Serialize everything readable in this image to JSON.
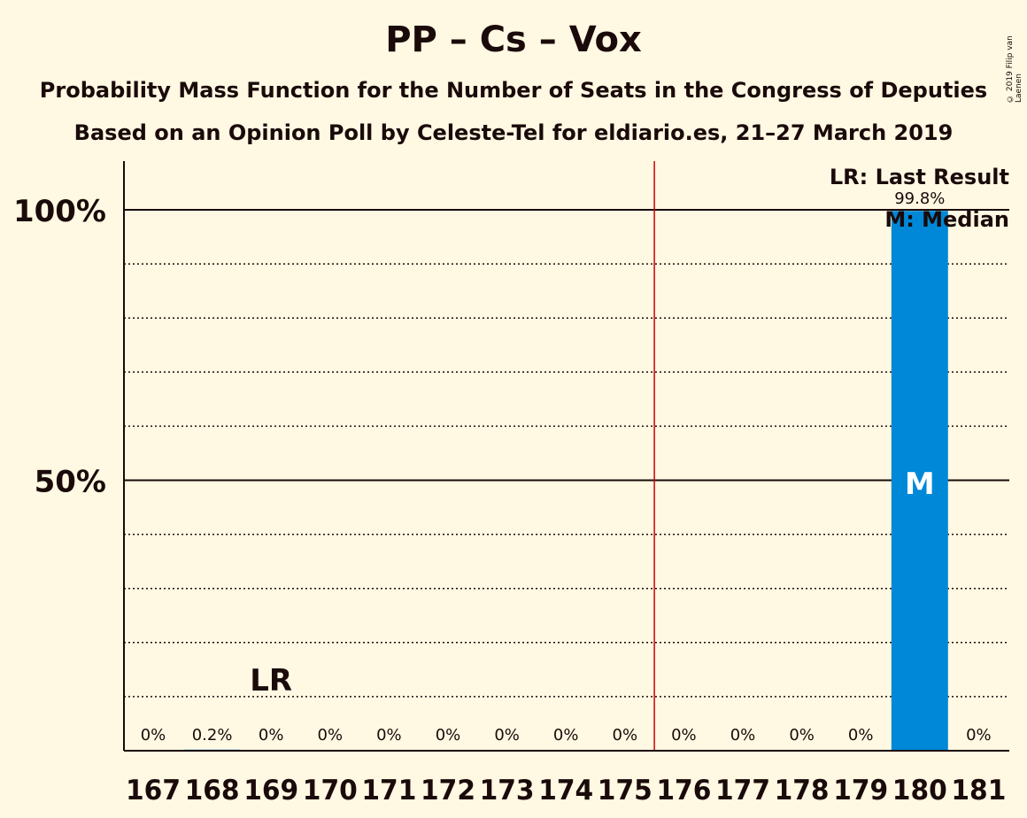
{
  "header": {
    "title": "PP – Cs – Vox",
    "subtitle": "Probability Mass Function for the Number of Seats in the Congress of Deputies",
    "subtitle2": "Based on an Opinion Poll by Celeste-Tel for eldiario.es, 21–27 March 2019"
  },
  "copyright": "© 2019 Filip van Laenen",
  "legend": {
    "last_result": "LR: Last Result",
    "median": "M: Median"
  },
  "chart_data": {
    "type": "bar",
    "categories": [
      "167",
      "168",
      "169",
      "170",
      "171",
      "172",
      "173",
      "174",
      "175",
      "176",
      "177",
      "178",
      "179",
      "180",
      "181"
    ],
    "values": [
      0,
      0.2,
      0,
      0,
      0,
      0,
      0,
      0,
      0,
      0,
      0,
      0,
      0,
      99.8,
      0
    ],
    "value_labels": [
      "0%",
      "0.2%",
      "0%",
      "0%",
      "0%",
      "0%",
      "0%",
      "0%",
      "0%",
      "0%",
      "0%",
      "0%",
      "0%",
      "99.8%",
      "0%"
    ],
    "ylim": [
      0,
      110
    ],
    "y_ticks": [
      {
        "value": 50,
        "label": "50%"
      },
      {
        "value": 100,
        "label": "100%"
      }
    ],
    "minor_gridlines": [
      10,
      20,
      30,
      40,
      60,
      70,
      80,
      90
    ],
    "majority_line_after": "175",
    "last_result": {
      "category": "169",
      "label": "LR"
    },
    "median": {
      "category": "180",
      "label": "M"
    },
    "colors": {
      "bar": "#0088d8",
      "majority_line": "#cc0000",
      "background": "#fff8e2",
      "text": "#1a0a0a"
    }
  }
}
